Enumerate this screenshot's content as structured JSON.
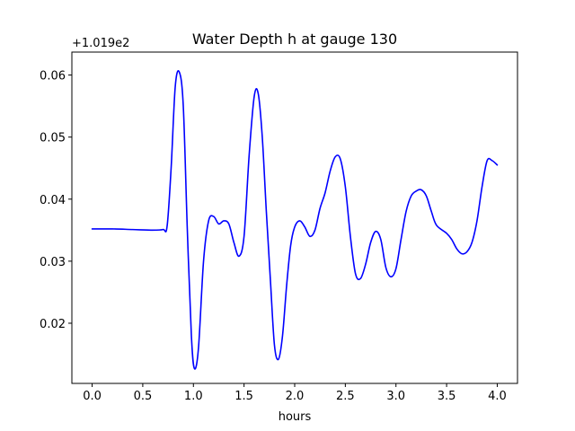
{
  "chart_data": {
    "type": "line",
    "title": "Water Depth h at gauge 130",
    "xlabel": "hours",
    "ylabel": "",
    "y_offset_label": "+1.019e2",
    "xlim": [
      -0.2,
      4.2
    ],
    "ylim": [
      0.0103,
      0.0637
    ],
    "x_ticks": [
      0.0,
      0.5,
      1.0,
      1.5,
      2.0,
      2.5,
      3.0,
      3.5,
      4.0
    ],
    "x_tick_labels": [
      "0.0",
      "0.5",
      "1.0",
      "1.5",
      "2.0",
      "2.5",
      "3.0",
      "3.5",
      "4.0"
    ],
    "y_ticks": [
      0.02,
      0.03,
      0.04,
      0.05,
      0.06
    ],
    "y_tick_labels": [
      "0.02",
      "0.03",
      "0.04",
      "0.05",
      "0.06"
    ],
    "grid": false,
    "legend": "none",
    "series": [
      {
        "color": "#0000ff",
        "x": [
          0.0,
          0.2,
          0.4,
          0.6,
          0.7,
          0.74,
          0.78,
          0.82,
          0.86,
          0.9,
          0.94,
          0.98,
          1.01,
          1.05,
          1.1,
          1.15,
          1.2,
          1.25,
          1.3,
          1.35,
          1.4,
          1.45,
          1.5,
          1.55,
          1.6,
          1.64,
          1.68,
          1.72,
          1.76,
          1.8,
          1.84,
          1.88,
          1.92,
          1.96,
          2.0,
          2.05,
          2.1,
          2.15,
          2.2,
          2.25,
          2.3,
          2.35,
          2.4,
          2.45,
          2.5,
          2.55,
          2.6,
          2.65,
          2.7,
          2.75,
          2.8,
          2.85,
          2.9,
          2.95,
          3.0,
          3.05,
          3.1,
          3.15,
          3.2,
          3.25,
          3.3,
          3.35,
          3.4,
          3.5,
          3.55,
          3.6,
          3.65,
          3.7,
          3.75,
          3.8,
          3.85,
          3.9,
          3.95,
          4.0
        ],
        "y": [
          0.0352,
          0.0352,
          0.0351,
          0.035,
          0.0351,
          0.0356,
          0.045,
          0.058,
          0.0605,
          0.055,
          0.035,
          0.018,
          0.0127,
          0.016,
          0.03,
          0.0365,
          0.0372,
          0.036,
          0.0365,
          0.036,
          0.033,
          0.0308,
          0.034,
          0.047,
          0.0565,
          0.057,
          0.05,
          0.038,
          0.027,
          0.0165,
          0.0142,
          0.018,
          0.026,
          0.0325,
          0.0355,
          0.0365,
          0.0355,
          0.034,
          0.035,
          0.0385,
          0.041,
          0.0445,
          0.0468,
          0.0465,
          0.042,
          0.034,
          0.028,
          0.0272,
          0.0295,
          0.033,
          0.0348,
          0.0335,
          0.029,
          0.0275,
          0.0288,
          0.0335,
          0.038,
          0.0405,
          0.0413,
          0.0415,
          0.0405,
          0.038,
          0.0358,
          0.0345,
          0.0335,
          0.032,
          0.0312,
          0.0315,
          0.033,
          0.0365,
          0.042,
          0.0462,
          0.0462,
          0.0455
        ]
      }
    ]
  }
}
